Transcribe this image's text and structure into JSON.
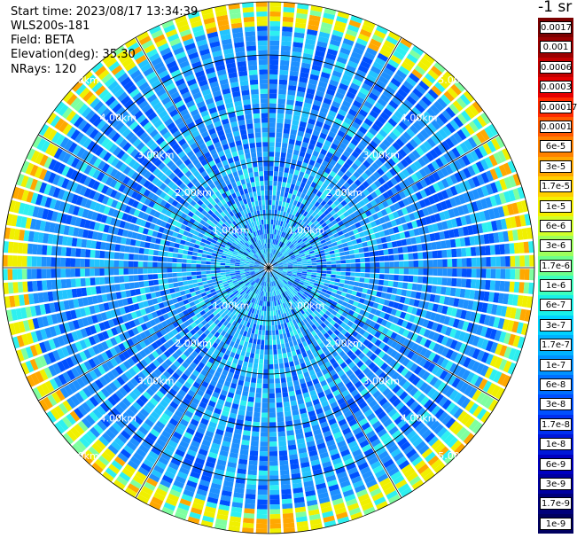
{
  "header": {
    "start_time": "Start time: 2023/08/17 13:34:39",
    "instrument": "WLS200s-181",
    "field": "Field: BETA",
    "elevation": "Elevation(deg): 35.30",
    "nrays": "NRays: 120"
  },
  "colorbar": {
    "unit": "-1 sr",
    "labels": [
      "0.0017",
      "0.001",
      "0.0006",
      "0.0003",
      "0.00017",
      "0.0001",
      "6e-5",
      "3e-5",
      "1.7e-5",
      "1e-5",
      "6e-6",
      "3e-6",
      "1.7e-6",
      "1e-6",
      "6e-7",
      "3e-7",
      "1.7e-7",
      "1e-7",
      "6e-8",
      "3e-8",
      "1.7e-8",
      "1e-8",
      "6e-9",
      "3e-9",
      "1.7e-9",
      "1e-9"
    ],
    "colors": [
      "#7a0000",
      "#9a0000",
      "#c20000",
      "#e60000",
      "#ff2a00",
      "#ff5a00",
      "#ff8200",
      "#ffa800",
      "#ffcf00",
      "#f5f000",
      "#d0ff2a",
      "#9dff5c",
      "#6cff8c",
      "#3cffbe",
      "#18f0e8",
      "#00d2ff",
      "#00b2ff",
      "#0092ff",
      "#0070ff",
      "#0050ff",
      "#0030f0",
      "#0018d8",
      "#0000c0",
      "#0000a0",
      "#00007a",
      "#000060"
    ]
  },
  "range_rings": [
    "1.00km",
    "2.00km",
    "3.00km",
    "4.00km",
    "5.00km"
  ],
  "plot": {
    "nrays": 120,
    "colors": {
      "deep": "#0050ff",
      "mid": "#1e90ff",
      "light": "#22c4ff",
      "cyan": "#2ef0f0",
      "green": "#7fffa0",
      "yellow": "#f0f000",
      "orange": "#ffa800",
      "grid": "#000000",
      "gap": "#ffffff"
    }
  }
}
